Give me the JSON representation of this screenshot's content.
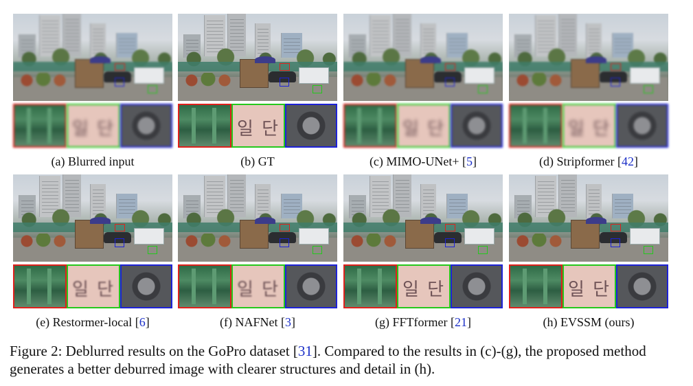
{
  "panels": [
    {
      "caption": "(a) Blurred input",
      "ref": "",
      "suffix": "",
      "crop_text": "일 단"
    },
    {
      "caption": "(b) GT",
      "ref": "",
      "suffix": "",
      "crop_text": "일 단"
    },
    {
      "caption": "(c) MIMO-UNet+ [",
      "ref": "5",
      "suffix": "]",
      "crop_text": "일 단"
    },
    {
      "caption": "(d) Stripformer [",
      "ref": "42",
      "suffix": "]",
      "crop_text": "일 단"
    },
    {
      "caption": "(e) Restormer-local [",
      "ref": "6",
      "suffix": "]",
      "crop_text": "일 단"
    },
    {
      "caption": "(f) NAFNet [",
      "ref": "3",
      "suffix": "]",
      "crop_text": "일 단"
    },
    {
      "caption": "(g) FFTformer [",
      "ref": "21",
      "suffix": "]",
      "crop_text": "일 단"
    },
    {
      "caption": "(h) EVSSM (ours)",
      "ref": "",
      "suffix": "",
      "crop_text": "일 단"
    }
  ],
  "figure_caption": {
    "prefix": "Figure 2: Deblurred results on the GoPro dataset [",
    "ref": "31",
    "suffix": "]. Compared to the results in (c)-(g), the proposed method generates a better deburred image with clearer structures and detail in (h)."
  },
  "colors": {
    "red_box": "#e0201c",
    "green_box": "#24c81c",
    "blue_box": "#1d22d8",
    "ref_link": "#1b2fc7"
  }
}
